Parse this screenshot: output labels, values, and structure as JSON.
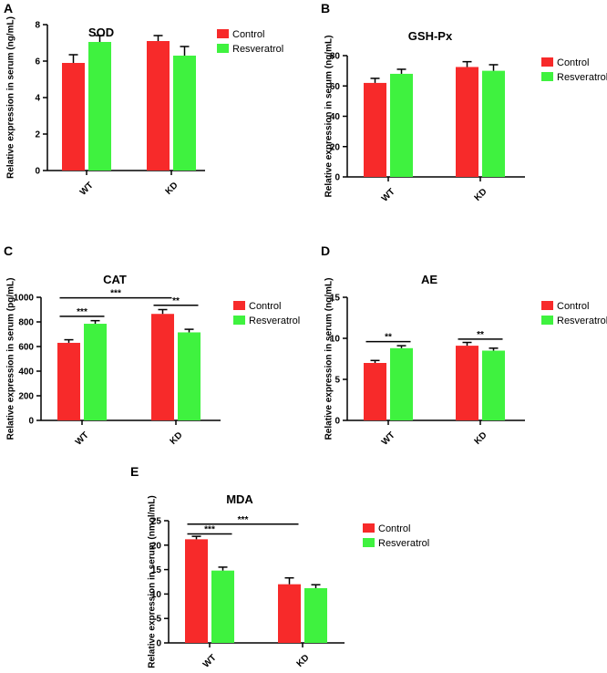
{
  "colors": {
    "control": "#f72a2a",
    "resveratrol": "#3ff23f",
    "axis": "#000000"
  },
  "legend": {
    "control": "Control",
    "resveratrol": "Resveratrol"
  },
  "chart_data": [
    {
      "id": "A",
      "panel_letter": "A",
      "type": "bar",
      "title": "SOD",
      "ylabel": "Relative expression in serum (ng/mL)",
      "categories": [
        "WT",
        "KD"
      ],
      "ylim": [
        0,
        8
      ],
      "yticks": [
        0,
        2,
        4,
        6,
        8
      ],
      "series": [
        {
          "name": "Control",
          "values": [
            5.9,
            7.1
          ],
          "errors": [
            0.45,
            0.3
          ]
        },
        {
          "name": "Resveratrol",
          "values": [
            7.05,
            6.3
          ],
          "errors": [
            0.35,
            0.5
          ]
        }
      ],
      "significance": []
    },
    {
      "id": "B",
      "panel_letter": "B",
      "type": "bar",
      "title": "GSH-Px",
      "ylabel": "Relative expression in serum (ng/mL)",
      "categories": [
        "WT",
        "KD"
      ],
      "ylim": [
        0,
        80
      ],
      "yticks": [
        0,
        20,
        40,
        60,
        80
      ],
      "series": [
        {
          "name": "Control",
          "values": [
            62,
            72.5
          ],
          "errors": [
            3,
            3.5
          ]
        },
        {
          "name": "Resveratrol",
          "values": [
            68,
            70
          ],
          "errors": [
            3,
            4
          ]
        }
      ],
      "significance": []
    },
    {
      "id": "C",
      "panel_letter": "C",
      "type": "bar",
      "title": "CAT",
      "ylabel": "Relative expression in serum (pg/mL)",
      "categories": [
        "WT",
        "KD"
      ],
      "ylim": [
        0,
        1000
      ],
      "yticks": [
        0,
        200,
        400,
        600,
        800,
        1000
      ],
      "series": [
        {
          "name": "Control",
          "values": [
            630,
            865
          ],
          "errors": [
            25,
            35
          ]
        },
        {
          "name": "Resveratrol",
          "values": [
            785,
            715
          ],
          "errors": [
            25,
            25
          ]
        }
      ],
      "significance": [
        {
          "label": "***",
          "from": [
            0,
            0
          ],
          "to": [
            0,
            1
          ],
          "y": 845
        },
        {
          "label": "***",
          "from": [
            0,
            0
          ],
          "to": [
            1,
            0
          ],
          "y": 995
        },
        {
          "label": "**",
          "from": [
            1,
            0
          ],
          "to": [
            1,
            1
          ],
          "y": 935
        }
      ]
    },
    {
      "id": "D",
      "panel_letter": "D",
      "type": "bar",
      "title": "AE",
      "ylabel": "Relative expression in serum (ng/mL)",
      "categories": [
        "WT",
        "KD"
      ],
      "ylim": [
        0,
        15
      ],
      "yticks": [
        0,
        5,
        10,
        15
      ],
      "series": [
        {
          "name": "Control",
          "values": [
            7.0,
            9.1
          ],
          "errors": [
            0.3,
            0.4
          ]
        },
        {
          "name": "Resveratrol",
          "values": [
            8.8,
            8.5
          ],
          "errors": [
            0.3,
            0.3
          ]
        }
      ],
      "significance": [
        {
          "label": "**",
          "from": [
            0,
            0
          ],
          "to": [
            0,
            1
          ],
          "y": 9.6
        },
        {
          "label": "**",
          "from": [
            1,
            0
          ],
          "to": [
            1,
            1
          ],
          "y": 9.9
        }
      ]
    },
    {
      "id": "E",
      "panel_letter": "E",
      "type": "bar",
      "title": "MDA",
      "ylabel": "Relative expression in serum (nmol/mL)",
      "categories": [
        "WT",
        "KD"
      ],
      "ylim": [
        0,
        25
      ],
      "yticks": [
        0,
        5,
        10,
        15,
        20,
        25
      ],
      "series": [
        {
          "name": "Control",
          "values": [
            21.2,
            12.0
          ],
          "errors": [
            0.6,
            1.3
          ]
        },
        {
          "name": "Resveratrol",
          "values": [
            14.8,
            11.2
          ],
          "errors": [
            0.7,
            0.7
          ]
        }
      ],
      "significance": [
        {
          "label": "***",
          "from": [
            0,
            0
          ],
          "to": [
            0,
            1
          ],
          "y": 22.3
        },
        {
          "label": "***",
          "from": [
            0,
            0
          ],
          "to": [
            1,
            0
          ],
          "y": 24.3
        }
      ]
    }
  ]
}
